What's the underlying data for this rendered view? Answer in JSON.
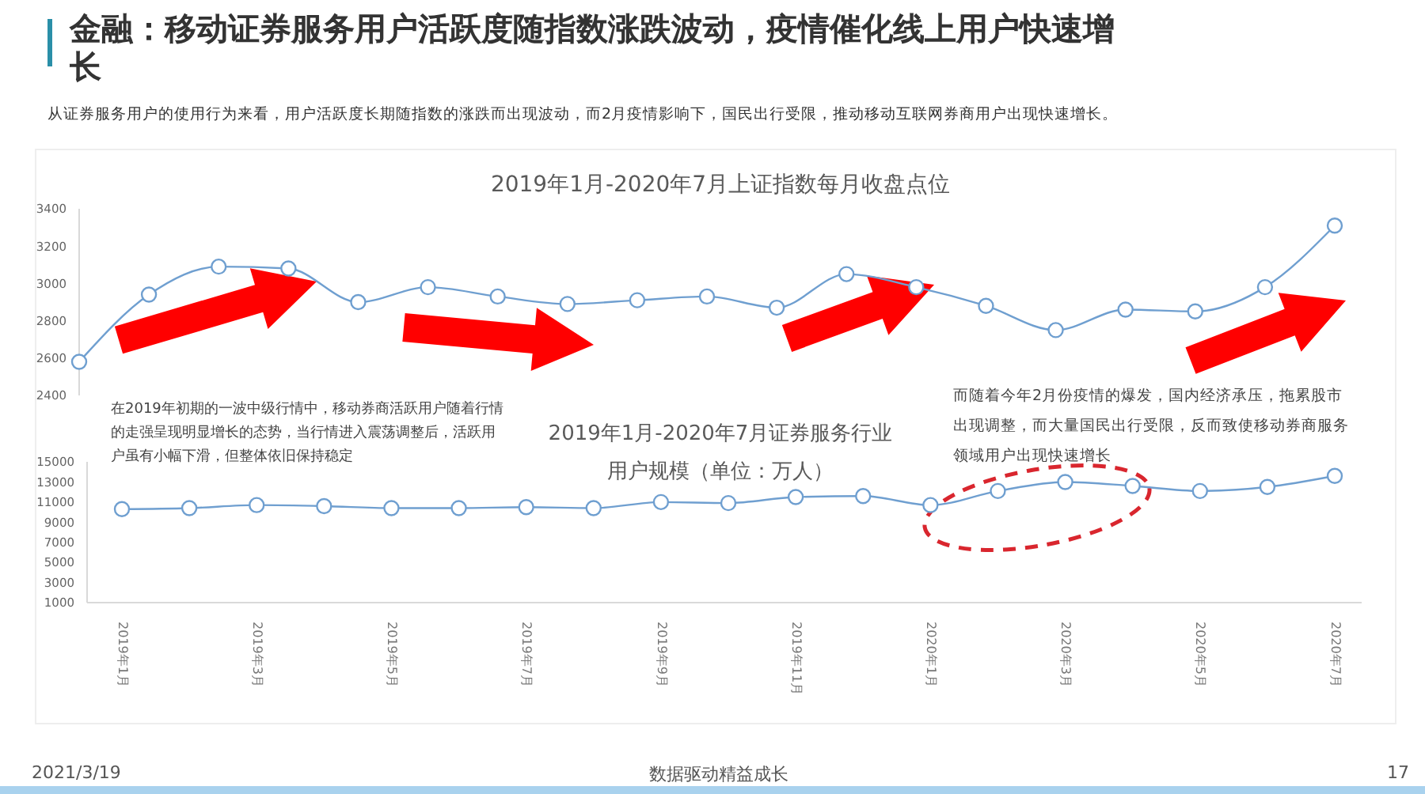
{
  "chart_data": [
    {
      "type": "line",
      "title": "2019年1月-2020年7月上证指数每月收盘点位",
      "categories": [
        null,
        null,
        null,
        null,
        null,
        null,
        null,
        null,
        null,
        null,
        null,
        null,
        null,
        null,
        null,
        null,
        null,
        null,
        null
      ],
      "values": [
        2580,
        2940,
        3090,
        3080,
        2900,
        2980,
        2930,
        2890,
        2910,
        2930,
        2870,
        3050,
        2980,
        2880,
        2750,
        2860,
        2850,
        2980,
        3310
      ],
      "color": "#6f9fd0",
      "ylim": [
        2400,
        3400
      ],
      "yticks": [
        2400,
        2600,
        2800,
        3000,
        3200,
        3400
      ],
      "marker": "circle",
      "grid": false,
      "annotations": [
        "金融：移动证券服务用户活跃度随指数涨跌波动，疫情催化线上用户快速增长",
        "从证券服务用户的使用行为来看，用户活跃度长期随指数的涨跌而出现波动，而2月疫情影响下，国民出行受限，推动移动互联网券商用户出现快速增长。",
        "2021/3/19",
        "数据驱动精益成长",
        "17"
      ]
    },
    {
      "type": "line",
      "title": "2019年1月-2020年7月证券服务行业",
      "subtitle": "用户规模（单位：万人）",
      "categories": [
        "2019年1月",
        null,
        "2019年3月",
        null,
        "2019年5月",
        null,
        "2019年7月",
        null,
        "2019年9月",
        null,
        "2019年11月",
        null,
        "2020年1月",
        null,
        "2020年3月",
        null,
        "2020年5月",
        null,
        "2020年7月"
      ],
      "values": [
        10300,
        10400,
        10700,
        10600,
        10400,
        10400,
        10500,
        10400,
        11000,
        10900,
        11500,
        11600,
        10700,
        12100,
        13000,
        12600,
        12100,
        12500,
        13600
      ],
      "color": "#6f9fd0",
      "ylim": [
        1000,
        15000
      ],
      "yticks": [
        1000,
        3000,
        5000,
        7000,
        9000,
        11000,
        13000,
        15000
      ],
      "marker": "circle",
      "grid": false,
      "annotations": [
        "在2019年初期的一波中级行情中，移动券商活跃用户随着行情的走强呈现明显增长的态势，当行情进入震荡调整后，活跃用户虽有小幅下滑，但整体依旧保持稳定",
        "而随着今年2月份疫情的爆发，国内经济承压，拖累股市出现调整，而大量国民出行受限，反而致使移动券商服务领域用户出现快速增长"
      ]
    }
  ]
}
